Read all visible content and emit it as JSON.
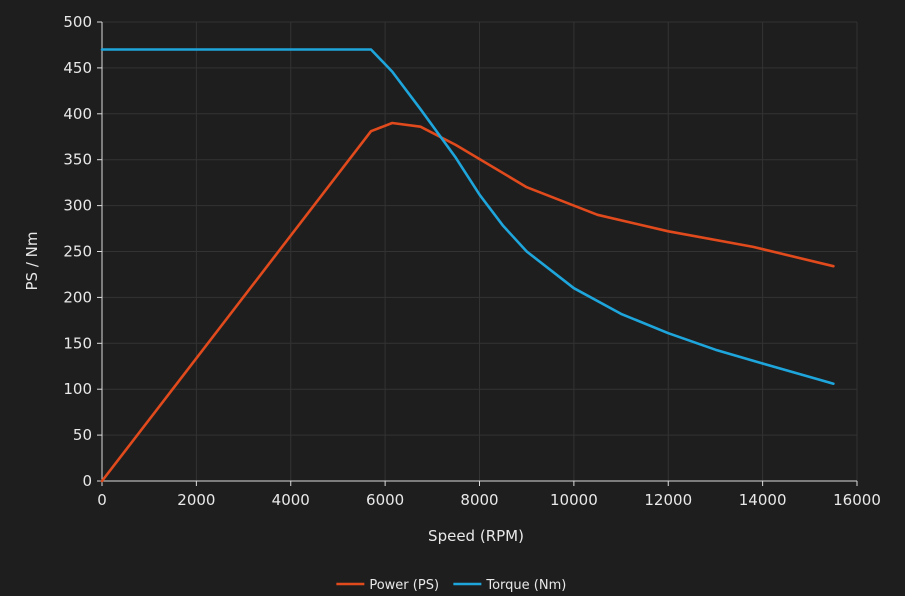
{
  "chart_data": {
    "type": "line",
    "xlabel": "Speed (RPM)",
    "ylabel": "PS / Nm",
    "xlim": [
      0,
      16000
    ],
    "ylim": [
      0,
      500
    ],
    "xticks": [
      0,
      2000,
      4000,
      6000,
      8000,
      10000,
      12000,
      14000,
      16000
    ],
    "yticks": [
      0,
      50,
      100,
      150,
      200,
      250,
      300,
      350,
      400,
      450,
      500
    ],
    "grid": true,
    "legend_position": "bottom-center",
    "series": [
      {
        "name": "Power (PS)",
        "color": "#e04a1c",
        "x": [
          0,
          5700,
          6150,
          6750,
          7500,
          9000,
          10500,
          12000,
          13800,
          15500
        ],
        "y": [
          0,
          381,
          390,
          386,
          366,
          320,
          290,
          272,
          255,
          234
        ]
      },
      {
        "name": "Torque (Nm)",
        "color": "#1ea6dc",
        "x": [
          0,
          5700,
          6150,
          6750,
          7500,
          8000,
          8500,
          9000,
          10000,
          11000,
          12000,
          13000,
          14000,
          15500
        ],
        "y": [
          470,
          470,
          446,
          405,
          352,
          312,
          278,
          250,
          210,
          182,
          161,
          143,
          128,
          106
        ]
      }
    ]
  }
}
